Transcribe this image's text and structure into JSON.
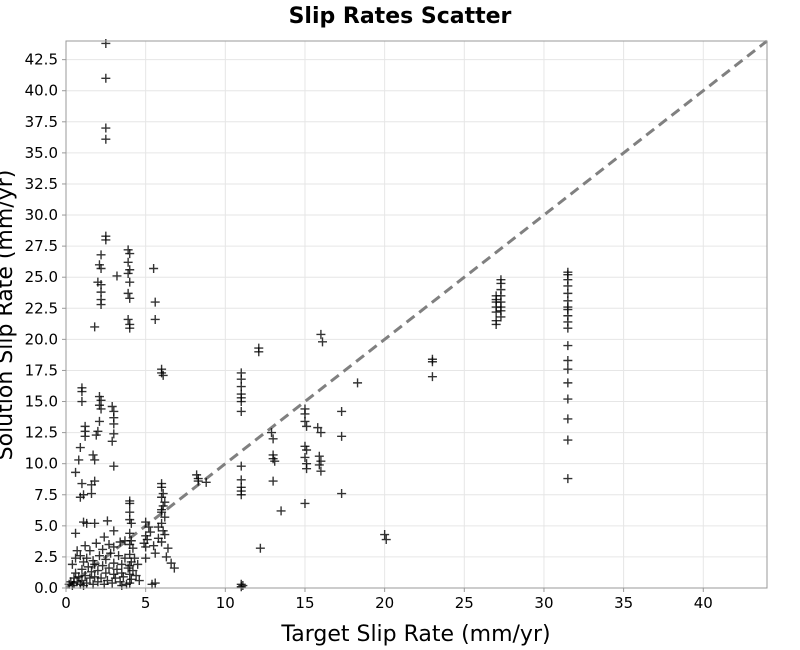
{
  "chart_data": {
    "type": "scatter",
    "title": "Slip Rates Scatter",
    "xlabel": "Target Slip Rate (mm/yr)",
    "ylabel": "Solution Slip Rate (mm/yr)",
    "xlim": [
      0,
      44
    ],
    "ylim": [
      0,
      44
    ],
    "x_ticks": [
      0,
      5,
      10,
      15,
      20,
      25,
      30,
      35,
      40
    ],
    "x_tick_labels": [
      "0",
      "5",
      "10",
      "15",
      "20",
      "25",
      "30",
      "35",
      "40"
    ],
    "y_ticks": [
      0,
      2.5,
      5,
      7.5,
      10,
      12.5,
      15,
      17.5,
      20,
      22.5,
      25,
      27.5,
      30,
      32.5,
      35,
      37.5,
      40,
      42.5
    ],
    "y_tick_labels": [
      "0.0",
      "2.5",
      "5.0",
      "7.5",
      "10.0",
      "12.5",
      "15.0",
      "17.5",
      "20.0",
      "22.5",
      "25.0",
      "27.5",
      "30.0",
      "32.5",
      "35.0",
      "37.5",
      "40.0",
      "42.5"
    ],
    "grid": true,
    "marker": "+",
    "reference_line": {
      "style": "dashed",
      "color": "#808080",
      "from": [
        0,
        0
      ],
      "to": [
        44,
        44
      ]
    },
    "points": [
      [
        2.5,
        43.8
      ],
      [
        2.5,
        41.0
      ],
      [
        2.5,
        37.0
      ],
      [
        2.5,
        36.1
      ],
      [
        2.5,
        28.3
      ],
      [
        2.5,
        28.0
      ],
      [
        2.2,
        26.8
      ],
      [
        2.1,
        26.0
      ],
      [
        2.2,
        25.7
      ],
      [
        2.0,
        24.6
      ],
      [
        2.2,
        24.4
      ],
      [
        2.2,
        23.8
      ],
      [
        2.2,
        23.2
      ],
      [
        2.2,
        22.8
      ],
      [
        1.8,
        21.0
      ],
      [
        3.2,
        25.1
      ],
      [
        3.9,
        27.2
      ],
      [
        4.0,
        26.9
      ],
      [
        3.9,
        26.2
      ],
      [
        4.0,
        25.6
      ],
      [
        3.9,
        25.3
      ],
      [
        4.0,
        24.6
      ],
      [
        3.9,
        23.7
      ],
      [
        4.0,
        23.3
      ],
      [
        3.9,
        21.6
      ],
      [
        4.0,
        21.2
      ],
      [
        4.0,
        20.9
      ],
      [
        5.5,
        25.7
      ],
      [
        5.6,
        23.0
      ],
      [
        5.6,
        21.6
      ],
      [
        6.0,
        17.6
      ],
      [
        6.0,
        17.3
      ],
      [
        6.1,
        17.1
      ],
      [
        1.0,
        16.1
      ],
      [
        1.0,
        15.8
      ],
      [
        1.0,
        15.0
      ],
      [
        1.2,
        13.0
      ],
      [
        1.2,
        12.6
      ],
      [
        1.2,
        12.2
      ],
      [
        0.9,
        11.3
      ],
      [
        0.8,
        10.3
      ],
      [
        0.6,
        9.3
      ],
      [
        1.0,
        8.4
      ],
      [
        1.1,
        7.5
      ],
      [
        0.9,
        7.3
      ],
      [
        2.1,
        15.4
      ],
      [
        2.2,
        15.1
      ],
      [
        2.1,
        14.7
      ],
      [
        2.2,
        14.4
      ],
      [
        2.1,
        13.4
      ],
      [
        2.0,
        12.6
      ],
      [
        1.9,
        12.3
      ],
      [
        1.7,
        10.7
      ],
      [
        1.8,
        10.3
      ],
      [
        1.8,
        8.6
      ],
      [
        1.6,
        8.3
      ],
      [
        1.6,
        7.6
      ],
      [
        2.9,
        14.6
      ],
      [
        3.0,
        14.2
      ],
      [
        3.0,
        13.7
      ],
      [
        3.0,
        13.2
      ],
      [
        3.0,
        12.4
      ],
      [
        2.9,
        11.8
      ],
      [
        3.0,
        9.8
      ],
      [
        1.1,
        5.3
      ],
      [
        1.3,
        5.2
      ],
      [
        0.6,
        4.4
      ],
      [
        1.8,
        5.2
      ],
      [
        2.6,
        5.4
      ],
      [
        3.0,
        4.6
      ],
      [
        2.4,
        4.1
      ],
      [
        3.4,
        3.7
      ],
      [
        3.7,
        3.8
      ],
      [
        4.0,
        7.0
      ],
      [
        4.0,
        6.8
      ],
      [
        4.0,
        6.1
      ],
      [
        4.0,
        5.5
      ],
      [
        4.1,
        5.2
      ],
      [
        4.0,
        4.4
      ],
      [
        4.1,
        3.8
      ],
      [
        4.0,
        3.5
      ],
      [
        4.2,
        3.2
      ],
      [
        4.0,
        2.7
      ],
      [
        4.3,
        2.4
      ],
      [
        4.1,
        2.1
      ],
      [
        4.0,
        1.8
      ],
      [
        4.2,
        1.4
      ],
      [
        4.0,
        1.1
      ],
      [
        4.1,
        0.7
      ],
      [
        4.0,
        0.4
      ],
      [
        5.0,
        5.3
      ],
      [
        5.2,
        4.9
      ],
      [
        5.3,
        4.5
      ],
      [
        5.0,
        4.2
      ],
      [
        5.1,
        3.9
      ],
      [
        4.9,
        3.6
      ],
      [
        5.0,
        3.3
      ],
      [
        5.5,
        3.4
      ],
      [
        5.6,
        2.8
      ],
      [
        5.0,
        2.4
      ],
      [
        5.8,
        4.9
      ],
      [
        6.0,
        6.3
      ],
      [
        6.0,
        8.4
      ],
      [
        6.0,
        8.1
      ],
      [
        6.1,
        7.6
      ],
      [
        6.0,
        7.3
      ],
      [
        6.2,
        6.9
      ],
      [
        6.1,
        6.6
      ],
      [
        6.0,
        6.1
      ],
      [
        6.2,
        5.7
      ],
      [
        6.0,
        5.2
      ],
      [
        6.1,
        4.6
      ],
      [
        6.2,
        4.3
      ],
      [
        5.8,
        4.0
      ],
      [
        6.0,
        3.7
      ],
      [
        6.4,
        3.2
      ],
      [
        6.3,
        2.5
      ],
      [
        6.6,
        2.0
      ],
      [
        6.8,
        1.6
      ],
      [
        5.4,
        0.3
      ],
      [
        5.6,
        0.4
      ],
      [
        0.2,
        0.3
      ],
      [
        0.3,
        0.5
      ],
      [
        0.4,
        0.2
      ],
      [
        0.5,
        0.8
      ],
      [
        0.5,
        0.4
      ],
      [
        0.6,
        1.2
      ],
      [
        0.7,
        0.5
      ],
      [
        0.8,
        0.9
      ],
      [
        0.9,
        0.3
      ],
      [
        1.0,
        1.5
      ],
      [
        1.0,
        0.6
      ],
      [
        1.1,
        2.1
      ],
      [
        1.1,
        0.2
      ],
      [
        1.2,
        1.0
      ],
      [
        1.3,
        2.4
      ],
      [
        1.3,
        0.4
      ],
      [
        1.4,
        1.7
      ],
      [
        1.5,
        0.8
      ],
      [
        1.5,
        3.0
      ],
      [
        1.6,
        1.3
      ],
      [
        1.7,
        0.3
      ],
      [
        1.7,
        2.2
      ],
      [
        1.8,
        0.9
      ],
      [
        1.8,
        1.9
      ],
      [
        1.9,
        3.6
      ],
      [
        2.0,
        0.5
      ],
      [
        2.0,
        1.4
      ],
      [
        2.1,
        2.6
      ],
      [
        2.2,
        0.8
      ],
      [
        2.3,
        1.8
      ],
      [
        2.3,
        3.1
      ],
      [
        2.4,
        0.3
      ],
      [
        2.5,
        1.2
      ],
      [
        2.5,
        2.3
      ],
      [
        2.6,
        0.6
      ],
      [
        2.7,
        1.6
      ],
      [
        2.8,
        2.8
      ],
      [
        2.9,
        0.4
      ],
      [
        3.0,
        1.1
      ],
      [
        3.0,
        2.0
      ],
      [
        3.1,
        0.8
      ],
      [
        3.2,
        1.5
      ],
      [
        3.3,
        2.6
      ],
      [
        3.4,
        0.5
      ],
      [
        3.5,
        1.2
      ],
      [
        3.5,
        1.9
      ],
      [
        3.6,
        0.9
      ],
      [
        3.7,
        2.4
      ],
      [
        3.8,
        0.3
      ],
      [
        3.9,
        1.6
      ],
      [
        4.4,
        1.0
      ],
      [
        4.5,
        1.9
      ],
      [
        4.6,
        0.6
      ],
      [
        0.7,
        3.0
      ],
      [
        0.9,
        2.6
      ],
      [
        1.2,
        3.4
      ],
      [
        0.4,
        1.9
      ],
      [
        0.6,
        2.4
      ],
      [
        2.7,
        3.5
      ],
      [
        3.5,
        0.2
      ],
      [
        3.0,
        3.3
      ],
      [
        8.2,
        9.1
      ],
      [
        8.3,
        8.8
      ],
      [
        8.3,
        8.6
      ],
      [
        8.8,
        8.5
      ],
      [
        11.0,
        17.3
      ],
      [
        11.0,
        16.8
      ],
      [
        11.0,
        16.2
      ],
      [
        11.0,
        15.6
      ],
      [
        11.0,
        15.3
      ],
      [
        11.0,
        15.0
      ],
      [
        11.0,
        14.2
      ],
      [
        11.0,
        9.8
      ],
      [
        11.0,
        8.7
      ],
      [
        11.0,
        8.1
      ],
      [
        11.0,
        7.8
      ],
      [
        11.0,
        7.5
      ],
      [
        11.0,
        0.3
      ],
      [
        11.0,
        0.1
      ],
      [
        11.1,
        0.2
      ],
      [
        12.1,
        19.3
      ],
      [
        12.1,
        19.0
      ],
      [
        12.2,
        3.2
      ],
      [
        12.9,
        12.5
      ],
      [
        13.0,
        12.0
      ],
      [
        13.0,
        10.7
      ],
      [
        13.0,
        10.4
      ],
      [
        13.1,
        10.2
      ],
      [
        13.0,
        8.6
      ],
      [
        13.5,
        6.2
      ],
      [
        15.0,
        14.4
      ],
      [
        15.0,
        14.0
      ],
      [
        15.0,
        13.4
      ],
      [
        15.1,
        13.0
      ],
      [
        15.0,
        11.4
      ],
      [
        15.1,
        11.1
      ],
      [
        15.0,
        10.5
      ],
      [
        15.1,
        10.0
      ],
      [
        15.1,
        9.6
      ],
      [
        15.0,
        6.8
      ],
      [
        16.0,
        20.4
      ],
      [
        16.1,
        19.8
      ],
      [
        15.8,
        12.9
      ],
      [
        16.0,
        12.5
      ],
      [
        15.9,
        10.6
      ],
      [
        16.0,
        10.2
      ],
      [
        15.9,
        9.9
      ],
      [
        16.0,
        9.4
      ],
      [
        17.3,
        14.2
      ],
      [
        17.3,
        12.2
      ],
      [
        17.3,
        7.6
      ],
      [
        18.3,
        16.5
      ],
      [
        20.0,
        4.3
      ],
      [
        20.1,
        3.9
      ],
      [
        23.0,
        18.4
      ],
      [
        23.0,
        18.2
      ],
      [
        23.0,
        17.0
      ],
      [
        27.0,
        23.5
      ],
      [
        27.0,
        23.2
      ],
      [
        27.0,
        23.0
      ],
      [
        27.0,
        22.6
      ],
      [
        27.0,
        22.2
      ],
      [
        27.0,
        21.5
      ],
      [
        27.0,
        21.2
      ],
      [
        27.3,
        24.8
      ],
      [
        27.3,
        24.5
      ],
      [
        27.3,
        24.0
      ],
      [
        27.3,
        23.5
      ],
      [
        27.3,
        23.0
      ],
      [
        27.3,
        22.6
      ],
      [
        27.3,
        22.3
      ],
      [
        27.3,
        21.8
      ],
      [
        31.5,
        25.4
      ],
      [
        31.5,
        25.2
      ],
      [
        31.5,
        24.8
      ],
      [
        31.5,
        24.3
      ],
      [
        31.5,
        23.7
      ],
      [
        31.5,
        23.1
      ],
      [
        31.5,
        22.6
      ],
      [
        31.5,
        22.4
      ],
      [
        31.5,
        21.9
      ],
      [
        31.5,
        21.4
      ],
      [
        31.5,
        20.9
      ],
      [
        31.5,
        19.5
      ],
      [
        31.5,
        18.3
      ],
      [
        31.5,
        17.6
      ],
      [
        31.5,
        16.5
      ],
      [
        31.5,
        15.2
      ],
      [
        31.5,
        13.6
      ],
      [
        31.5,
        11.9
      ],
      [
        31.5,
        8.8
      ]
    ]
  }
}
